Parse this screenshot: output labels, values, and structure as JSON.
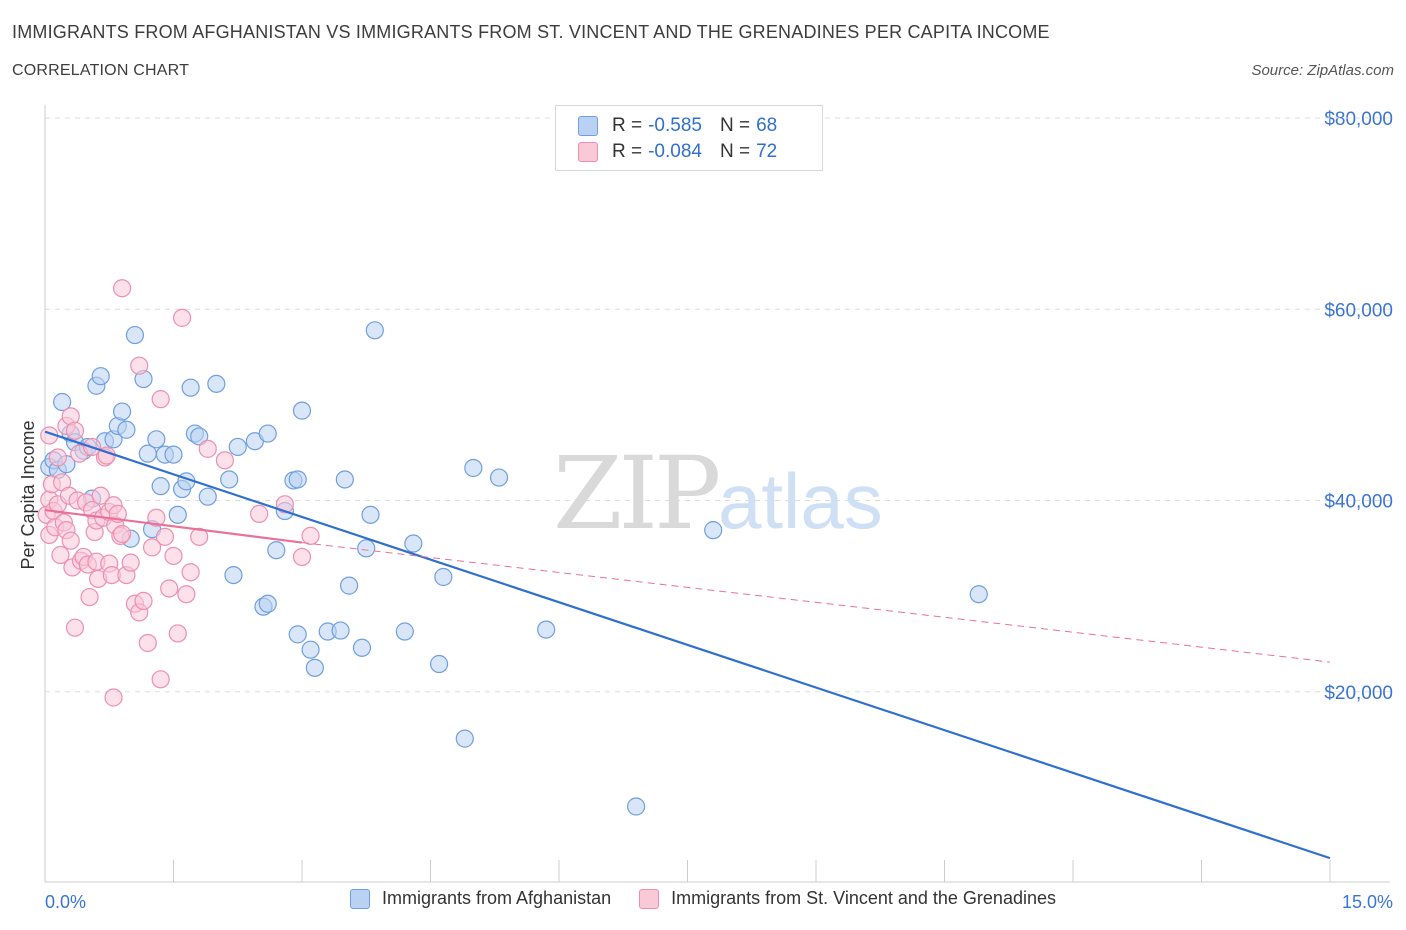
{
  "title": "IMMIGRANTS FROM AFGHANISTAN VS IMMIGRANTS FROM ST. VINCENT AND THE GRENADINES PER CAPITA INCOME",
  "subtitle": "CORRELATION CHART",
  "source": "Source: ZipAtlas.com",
  "watermark": {
    "zip": "ZIP",
    "atlas": "atlas"
  },
  "legend": {
    "rows": [
      {
        "r_label": "R =",
        "r_value": "-0.585",
        "n_label": "N =",
        "n_value": "68",
        "color": "#6f9fe0"
      },
      {
        "r_label": "R =",
        "r_value": "-0.084",
        "n_label": "N =",
        "n_value": "72",
        "color": "#ee8fae"
      }
    ]
  },
  "colors": {
    "blue": "#2f6fd1",
    "blue_fill": "#b9d2f3",
    "pink": "#e8719a",
    "pink_fill": "#f9c9d8",
    "grid": "#dddddd",
    "axis_label": "#3a74d6"
  },
  "chart_data": {
    "type": "scatter",
    "title": "IMMIGRANTS FROM AFGHANISTAN VS IMMIGRANTS FROM ST. VINCENT AND THE GRENADINES PER CAPITA INCOME",
    "ylabel": "Per Capita Income",
    "xlabel": "",
    "xlim": [
      0,
      15
    ],
    "ylim": [
      0,
      80000
    ],
    "x_tick_labels": [
      "0.0%",
      "15.0%"
    ],
    "y_ticks": [
      20000,
      40000,
      60000,
      80000
    ],
    "y_tick_labels": [
      "$20,000",
      "$40,000",
      "$60,000",
      "$80,000"
    ],
    "grid": true,
    "series": [
      {
        "name": "Immigrants from Afghanistan",
        "color": "#6f9fe0",
        "r": -0.585,
        "n": 68,
        "trend": {
          "x": [
            0,
            15
          ],
          "y": [
            47200,
            2600
          ]
        },
        "points": [
          [
            0.05,
            43500
          ],
          [
            0.1,
            44200
          ],
          [
            0.15,
            43200
          ],
          [
            0.2,
            50300
          ],
          [
            0.3,
            47000
          ],
          [
            0.35,
            46100
          ],
          [
            0.45,
            45200
          ],
          [
            0.5,
            45600
          ],
          [
            0.55,
            40200
          ],
          [
            0.6,
            52000
          ],
          [
            0.65,
            53000
          ],
          [
            0.7,
            46200
          ],
          [
            0.8,
            46400
          ],
          [
            0.85,
            47800
          ],
          [
            0.9,
            49300
          ],
          [
            0.95,
            47400
          ],
          [
            1.0,
            36000
          ],
          [
            1.05,
            57300
          ],
          [
            1.15,
            52700
          ],
          [
            1.2,
            44900
          ],
          [
            1.25,
            37000
          ],
          [
            1.3,
            46400
          ],
          [
            1.35,
            41500
          ],
          [
            1.4,
            44800
          ],
          [
            1.5,
            44800
          ],
          [
            1.55,
            38500
          ],
          [
            1.6,
            41200
          ],
          [
            1.65,
            42000
          ],
          [
            1.7,
            51800
          ],
          [
            1.75,
            47000
          ],
          [
            1.8,
            46700
          ],
          [
            1.9,
            40400
          ],
          [
            2.0,
            52200
          ],
          [
            2.15,
            42200
          ],
          [
            2.2,
            32200
          ],
          [
            2.25,
            45600
          ],
          [
            2.45,
            46200
          ],
          [
            2.55,
            28900
          ],
          [
            2.6,
            29200
          ],
          [
            2.6,
            47000
          ],
          [
            2.7,
            34800
          ],
          [
            2.8,
            38900
          ],
          [
            2.9,
            42100
          ],
          [
            2.95,
            42200
          ],
          [
            2.95,
            26000
          ],
          [
            3.0,
            49400
          ],
          [
            3.1,
            24400
          ],
          [
            3.15,
            22500
          ],
          [
            3.3,
            26300
          ],
          [
            3.45,
            26400
          ],
          [
            3.5,
            42200
          ],
          [
            3.55,
            31100
          ],
          [
            3.7,
            24600
          ],
          [
            3.75,
            35000
          ],
          [
            3.8,
            38500
          ],
          [
            3.85,
            57800
          ],
          [
            4.2,
            26300
          ],
          [
            4.3,
            35500
          ],
          [
            4.6,
            22900
          ],
          [
            4.65,
            32000
          ],
          [
            4.9,
            15100
          ],
          [
            5.0,
            43400
          ],
          [
            5.3,
            42400
          ],
          [
            5.85,
            26500
          ],
          [
            6.9,
            8000
          ],
          [
            7.8,
            36900
          ],
          [
            10.9,
            30200
          ],
          [
            0.25,
            43800
          ]
        ]
      },
      {
        "name": "Immigrants from St. Vincent and the Grenadines",
        "color": "#ee8fae",
        "r": -0.084,
        "n": 72,
        "trend": {
          "x": [
            0,
            3
          ],
          "y": [
            39000,
            35600
          ],
          "dashed_to": {
            "x": 15,
            "y": 23100
          }
        },
        "points": [
          [
            0.02,
            38500
          ],
          [
            0.05,
            40100
          ],
          [
            0.05,
            36400
          ],
          [
            0.08,
            41700
          ],
          [
            0.1,
            38900
          ],
          [
            0.12,
            37200
          ],
          [
            0.15,
            39600
          ],
          [
            0.18,
            34300
          ],
          [
            0.2,
            41900
          ],
          [
            0.22,
            37700
          ],
          [
            0.25,
            36900
          ],
          [
            0.25,
            47800
          ],
          [
            0.28,
            40500
          ],
          [
            0.3,
            35800
          ],
          [
            0.3,
            48800
          ],
          [
            0.32,
            33000
          ],
          [
            0.35,
            26700
          ],
          [
            0.35,
            47300
          ],
          [
            0.38,
            40000
          ],
          [
            0.4,
            44900
          ],
          [
            0.42,
            33700
          ],
          [
            0.45,
            34100
          ],
          [
            0.48,
            39800
          ],
          [
            0.5,
            33300
          ],
          [
            0.52,
            29900
          ],
          [
            0.55,
            39000
          ],
          [
            0.55,
            45600
          ],
          [
            0.58,
            36700
          ],
          [
            0.6,
            37900
          ],
          [
            0.6,
            33600
          ],
          [
            0.62,
            31800
          ],
          [
            0.65,
            40500
          ],
          [
            0.68,
            38200
          ],
          [
            0.7,
            44500
          ],
          [
            0.72,
            44700
          ],
          [
            0.75,
            38800
          ],
          [
            0.75,
            33400
          ],
          [
            0.78,
            32200
          ],
          [
            0.8,
            39500
          ],
          [
            0.82,
            37400
          ],
          [
            0.85,
            38600
          ],
          [
            0.88,
            36300
          ],
          [
            0.9,
            36500
          ],
          [
            0.95,
            32200
          ],
          [
            1.0,
            33500
          ],
          [
            1.05,
            29200
          ],
          [
            1.1,
            28300
          ],
          [
            1.15,
            29500
          ],
          [
            1.2,
            25100
          ],
          [
            1.25,
            35100
          ],
          [
            1.3,
            38200
          ],
          [
            1.35,
            21300
          ],
          [
            1.4,
            36200
          ],
          [
            1.45,
            30800
          ],
          [
            1.5,
            34200
          ],
          [
            1.55,
            26100
          ],
          [
            1.65,
            30200
          ],
          [
            1.7,
            32500
          ],
          [
            1.8,
            36200
          ],
          [
            1.9,
            45400
          ],
          [
            2.1,
            44200
          ],
          [
            2.5,
            38600
          ],
          [
            2.8,
            39600
          ],
          [
            3.0,
            34100
          ],
          [
            3.1,
            36300
          ],
          [
            1.1,
            54100
          ],
          [
            0.9,
            62200
          ],
          [
            1.6,
            59100
          ],
          [
            0.8,
            19400
          ],
          [
            1.35,
            50600
          ],
          [
            0.05,
            46800
          ],
          [
            0.15,
            44500
          ]
        ]
      }
    ]
  }
}
